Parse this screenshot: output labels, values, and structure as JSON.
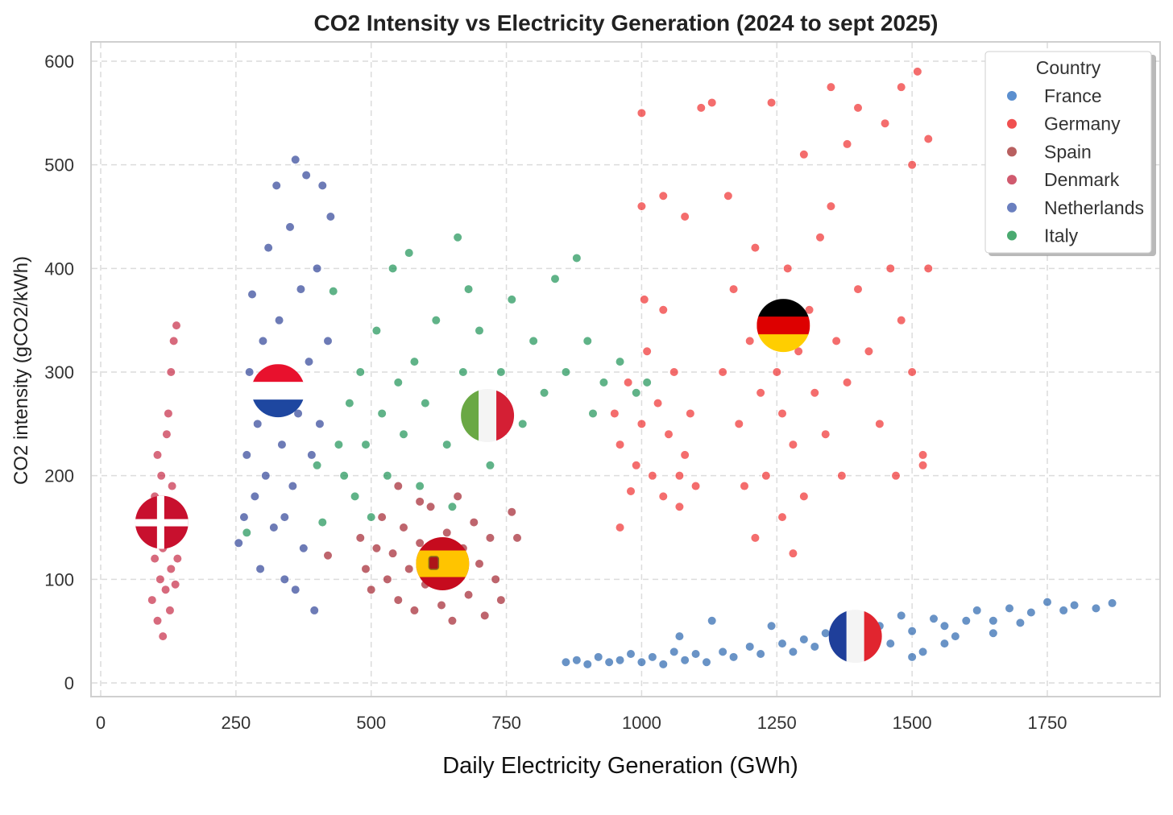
{
  "chart_data": {
    "type": "scatter",
    "title": "CO2 Intensity vs Electricity Generation (2024 to sept 2025)",
    "xlabel": "Daily Electricity Generation (GWh)",
    "ylabel": "CO2 intensity (gCO2/kWh)",
    "xlim": [
      -30,
      1960
    ],
    "ylim": [
      -12,
      612
    ],
    "xticks": [
      0,
      250,
      500,
      750,
      1000,
      1250,
      1500,
      1750
    ],
    "yticks": [
      0,
      100,
      200,
      300,
      400,
      500,
      600
    ],
    "grid": true,
    "legend": {
      "title": "Country",
      "placement": "top-right"
    },
    "series": [
      {
        "name": "France",
        "color": "#2f69b0",
        "legend_color": "#5b8fcf",
        "points": [
          [
            860,
            20
          ],
          [
            880,
            22
          ],
          [
            900,
            18
          ],
          [
            920,
            25
          ],
          [
            940,
            20
          ],
          [
            960,
            22
          ],
          [
            980,
            28
          ],
          [
            1000,
            20
          ],
          [
            1020,
            25
          ],
          [
            1040,
            18
          ],
          [
            1060,
            30
          ],
          [
            1070,
            45
          ],
          [
            1080,
            22
          ],
          [
            1100,
            28
          ],
          [
            1120,
            20
          ],
          [
            1130,
            60
          ],
          [
            1150,
            30
          ],
          [
            1170,
            25
          ],
          [
            1200,
            35
          ],
          [
            1220,
            28
          ],
          [
            1240,
            55
          ],
          [
            1260,
            38
          ],
          [
            1280,
            30
          ],
          [
            1300,
            42
          ],
          [
            1320,
            35
          ],
          [
            1340,
            48
          ],
          [
            1360,
            40
          ],
          [
            1380,
            60
          ],
          [
            1400,
            52
          ],
          [
            1420,
            45
          ],
          [
            1440,
            55
          ],
          [
            1460,
            38
          ],
          [
            1480,
            65
          ],
          [
            1500,
            50
          ],
          [
            1520,
            30
          ],
          [
            1540,
            62
          ],
          [
            1560,
            55
          ],
          [
            1580,
            45
          ],
          [
            1600,
            60
          ],
          [
            1620,
            70
          ],
          [
            1650,
            60
          ],
          [
            1680,
            72
          ],
          [
            1700,
            58
          ],
          [
            1720,
            68
          ],
          [
            1750,
            78
          ],
          [
            1780,
            70
          ],
          [
            1800,
            75
          ],
          [
            1840,
            72
          ],
          [
            1870,
            77
          ],
          [
            1500,
            25
          ],
          [
            1560,
            38
          ],
          [
            1650,
            48
          ]
        ]
      },
      {
        "name": "Germany",
        "color": "#f03434",
        "legend_color": "#f05050",
        "points": [
          [
            950,
            260
          ],
          [
            960,
            230
          ],
          [
            975,
            290
          ],
          [
            990,
            210
          ],
          [
            1000,
            250
          ],
          [
            1010,
            320
          ],
          [
            1020,
            200
          ],
          [
            1030,
            270
          ],
          [
            1040,
            180
          ],
          [
            1050,
            240
          ],
          [
            1060,
            300
          ],
          [
            1070,
            170
          ],
          [
            1080,
            220
          ],
          [
            1090,
            260
          ],
          [
            1100,
            190
          ],
          [
            1005,
            370
          ],
          [
            1040,
            360
          ],
          [
            980,
            185
          ],
          [
            960,
            150
          ],
          [
            1070,
            200
          ],
          [
            1000,
            550
          ],
          [
            1000,
            460
          ],
          [
            1040,
            470
          ],
          [
            1080,
            450
          ],
          [
            1110,
            555
          ],
          [
            1130,
            560
          ],
          [
            1240,
            560
          ],
          [
            1350,
            575
          ],
          [
            1400,
            555
          ],
          [
            1480,
            575
          ],
          [
            1510,
            590
          ],
          [
            1530,
            525
          ],
          [
            1500,
            500
          ],
          [
            1450,
            540
          ],
          [
            1380,
            520
          ],
          [
            1300,
            510
          ],
          [
            1150,
            300
          ],
          [
            1170,
            380
          ],
          [
            1180,
            250
          ],
          [
            1200,
            330
          ],
          [
            1210,
            420
          ],
          [
            1220,
            280
          ],
          [
            1230,
            200
          ],
          [
            1240,
            350
          ],
          [
            1250,
            300
          ],
          [
            1260,
            260
          ],
          [
            1270,
            400
          ],
          [
            1280,
            230
          ],
          [
            1290,
            320
          ],
          [
            1300,
            180
          ],
          [
            1310,
            360
          ],
          [
            1320,
            280
          ],
          [
            1330,
            430
          ],
          [
            1340,
            240
          ],
          [
            1360,
            330
          ],
          [
            1380,
            290
          ],
          [
            1400,
            380
          ],
          [
            1420,
            320
          ],
          [
            1440,
            250
          ],
          [
            1460,
            400
          ],
          [
            1480,
            350
          ],
          [
            1500,
            300
          ],
          [
            1520,
            220
          ],
          [
            1530,
            400
          ],
          [
            1210,
            140
          ],
          [
            1280,
            125
          ],
          [
            1260,
            160
          ],
          [
            1160,
            470
          ],
          [
            1350,
            460
          ],
          [
            1470,
            200
          ],
          [
            1520,
            210
          ],
          [
            1190,
            190
          ],
          [
            1370,
            200
          ]
        ]
      },
      {
        "name": "Spain",
        "color": "#a52a35",
        "legend_color": "#b86060",
        "points": [
          [
            480,
            140
          ],
          [
            490,
            110
          ],
          [
            500,
            90
          ],
          [
            510,
            130
          ],
          [
            520,
            160
          ],
          [
            530,
            100
          ],
          [
            540,
            125
          ],
          [
            550,
            80
          ],
          [
            560,
            150
          ],
          [
            570,
            110
          ],
          [
            580,
            70
          ],
          [
            590,
            135
          ],
          [
            600,
            95
          ],
          [
            610,
            170
          ],
          [
            620,
            120
          ],
          [
            630,
            75
          ],
          [
            640,
            145
          ],
          [
            650,
            105
          ],
          [
            660,
            180
          ],
          [
            670,
            130
          ],
          [
            680,
            85
          ],
          [
            690,
            155
          ],
          [
            700,
            115
          ],
          [
            710,
            65
          ],
          [
            720,
            140
          ],
          [
            730,
            100
          ],
          [
            740,
            80
          ],
          [
            650,
            60
          ],
          [
            590,
            175
          ],
          [
            550,
            190
          ],
          [
            760,
            165
          ],
          [
            770,
            140
          ],
          [
            420,
            123
          ]
        ]
      },
      {
        "name": "Denmark",
        "color": "#c8304b",
        "legend_color": "#d05a6e",
        "points": [
          [
            95,
            80
          ],
          [
            100,
            120
          ],
          [
            105,
            60
          ],
          [
            108,
            150
          ],
          [
            110,
            100
          ],
          [
            112,
            200
          ],
          [
            115,
            130
          ],
          [
            115,
            45
          ],
          [
            118,
            170
          ],
          [
            120,
            90
          ],
          [
            122,
            240
          ],
          [
            125,
            140
          ],
          [
            125,
            260
          ],
          [
            128,
            70
          ],
          [
            130,
            110
          ],
          [
            130,
            300
          ],
          [
            132,
            190
          ],
          [
            135,
            330
          ],
          [
            140,
            345
          ],
          [
            135,
            160
          ],
          [
            138,
            95
          ],
          [
            142,
            120
          ],
          [
            100,
            180
          ],
          [
            105,
            220
          ]
        ]
      },
      {
        "name": "Netherlands",
        "color": "#34489a",
        "legend_color": "#6a7fbf",
        "points": [
          [
            255,
            135
          ],
          [
            265,
            160
          ],
          [
            270,
            220
          ],
          [
            275,
            300
          ],
          [
            280,
            375
          ],
          [
            285,
            180
          ],
          [
            290,
            250
          ],
          [
            295,
            110
          ],
          [
            300,
            330
          ],
          [
            305,
            200
          ],
          [
            310,
            420
          ],
          [
            315,
            270
          ],
          [
            320,
            150
          ],
          [
            325,
            480
          ],
          [
            330,
            350
          ],
          [
            335,
            230
          ],
          [
            340,
            100
          ],
          [
            345,
            300
          ],
          [
            350,
            440
          ],
          [
            355,
            190
          ],
          [
            360,
            505
          ],
          [
            365,
            260
          ],
          [
            370,
            380
          ],
          [
            375,
            130
          ],
          [
            380,
            490
          ],
          [
            385,
            310
          ],
          [
            390,
            220
          ],
          [
            395,
            70
          ],
          [
            400,
            400
          ],
          [
            405,
            250
          ],
          [
            410,
            480
          ],
          [
            420,
            330
          ],
          [
            425,
            450
          ],
          [
            360,
            90
          ],
          [
            340,
            160
          ]
        ]
      },
      {
        "name": "Italy",
        "color": "#23955a",
        "legend_color": "#4aaa70",
        "points": [
          [
            430,
            378
          ],
          [
            440,
            230
          ],
          [
            450,
            200
          ],
          [
            460,
            270
          ],
          [
            470,
            180
          ],
          [
            480,
            300
          ],
          [
            490,
            230
          ],
          [
            500,
            160
          ],
          [
            510,
            340
          ],
          [
            520,
            260
          ],
          [
            530,
            200
          ],
          [
            540,
            400
          ],
          [
            550,
            290
          ],
          [
            560,
            240
          ],
          [
            570,
            415
          ],
          [
            580,
            310
          ],
          [
            590,
            190
          ],
          [
            600,
            270
          ],
          [
            620,
            350
          ],
          [
            640,
            230
          ],
          [
            660,
            430
          ],
          [
            670,
            300
          ],
          [
            680,
            380
          ],
          [
            690,
            260
          ],
          [
            700,
            340
          ],
          [
            720,
            210
          ],
          [
            740,
            300
          ],
          [
            760,
            370
          ],
          [
            780,
            250
          ],
          [
            800,
            330
          ],
          [
            820,
            280
          ],
          [
            840,
            390
          ],
          [
            860,
            300
          ],
          [
            880,
            410
          ],
          [
            900,
            330
          ],
          [
            910,
            260
          ],
          [
            930,
            290
          ],
          [
            960,
            310
          ],
          [
            990,
            280
          ],
          [
            1010,
            290
          ],
          [
            400,
            210
          ],
          [
            410,
            155
          ],
          [
            270,
            145
          ],
          [
            650,
            170
          ]
        ]
      }
    ],
    "flag_markers": [
      {
        "country": "Denmark",
        "x": 113,
        "y": 155
      },
      {
        "country": "Netherlands",
        "x": 328,
        "y": 282
      },
      {
        "country": "Italy",
        "x": 715,
        "y": 258
      },
      {
        "country": "Spain",
        "x": 632,
        "y": 115
      },
      {
        "country": "Germany",
        "x": 1262,
        "y": 345
      },
      {
        "country": "France",
        "x": 1395,
        "y": 45
      }
    ]
  }
}
